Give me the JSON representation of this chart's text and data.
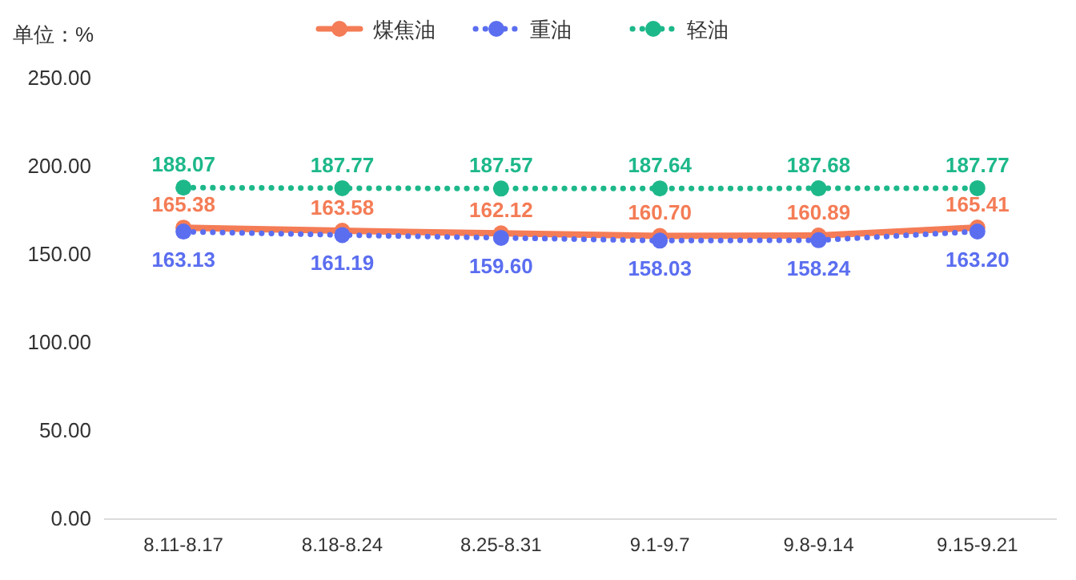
{
  "chart_data": {
    "type": "line",
    "ylabel": "单位：%",
    "categories": [
      "8.11-8.17",
      "8.18-8.24",
      "8.25-8.31",
      "9.1-9.7",
      "9.8-9.14",
      "9.15-9.21"
    ],
    "series": [
      {
        "name": "煤焦油",
        "color": "#f47c56",
        "line_style": "solid",
        "marker": "circle",
        "values": [
          165.38,
          163.58,
          162.12,
          160.7,
          160.89,
          165.41
        ],
        "value_labels": [
          "165.38",
          "163.58",
          "162.12",
          "160.70",
          "160.89",
          "165.41"
        ]
      },
      {
        "name": "重油",
        "color": "#5b6ef0",
        "line_style": "dotted",
        "marker": "circle",
        "values": [
          163.13,
          161.19,
          159.6,
          158.03,
          158.24,
          163.2
        ],
        "value_labels": [
          "163.13",
          "161.19",
          "159.60",
          "158.03",
          "158.24",
          "163.20"
        ]
      },
      {
        "name": "轻油",
        "color": "#1db88a",
        "line_style": "dotted",
        "marker": "circle",
        "values": [
          188.07,
          187.77,
          187.57,
          187.64,
          187.68,
          187.77
        ],
        "value_labels": [
          "188.07",
          "187.77",
          "187.57",
          "187.64",
          "187.68",
          "187.77"
        ]
      }
    ],
    "ylim": [
      0,
      250
    ],
    "yticks": [
      {
        "value": 0,
        "label": "0.00"
      },
      {
        "value": 50,
        "label": "50.00"
      },
      {
        "value": 100,
        "label": "100.00"
      },
      {
        "value": 150,
        "label": "150.00"
      },
      {
        "value": 200,
        "label": "200.00"
      },
      {
        "value": 250,
        "label": "250.00"
      }
    ],
    "grid": false,
    "legend": "top"
  }
}
